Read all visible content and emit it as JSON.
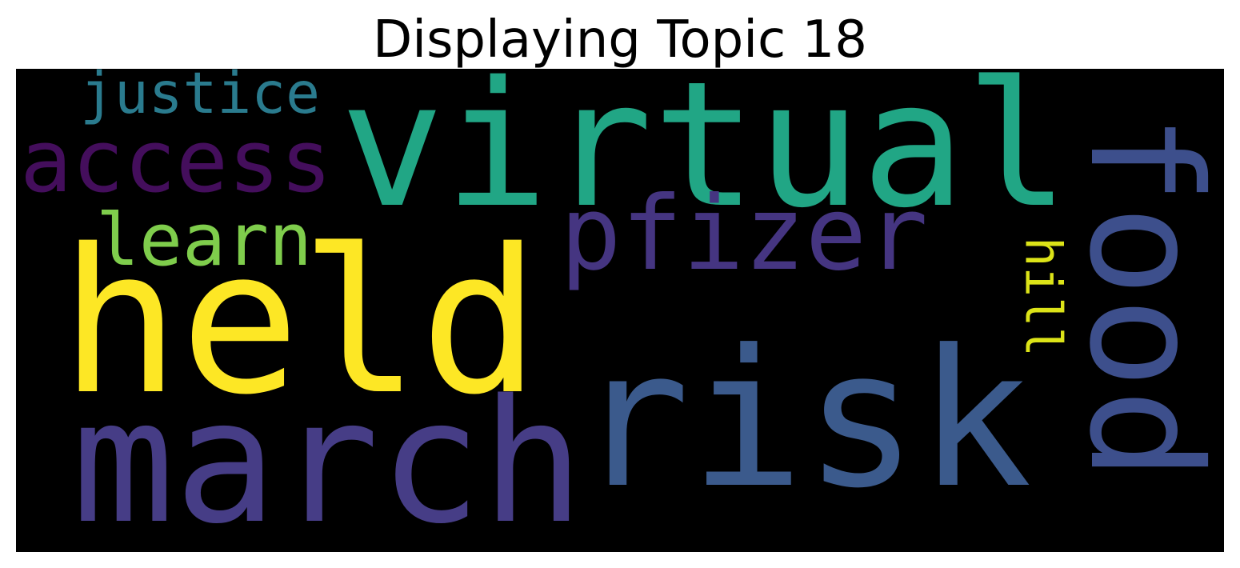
{
  "figure": {
    "title": "Displaying Topic 18",
    "background_color": "#000000",
    "colormap": "viridis"
  },
  "word_cloud": {
    "words": [
      {
        "text": "virtual",
        "color": "#21a685",
        "orientation": "horizontal",
        "relative_size": 1.0
      },
      {
        "text": "held",
        "color": "#fde725",
        "orientation": "horizontal",
        "relative_size": 1.0
      },
      {
        "text": "risk",
        "color": "#3b5a8c",
        "orientation": "horizontal",
        "relative_size": 1.0
      },
      {
        "text": "march",
        "color": "#463d86",
        "orientation": "horizontal",
        "relative_size": 0.85
      },
      {
        "text": "food",
        "color": "#3d4f8c",
        "orientation": "vertical",
        "relative_size": 0.85
      },
      {
        "text": "pfizer",
        "color": "#453581",
        "orientation": "horizontal",
        "relative_size": 0.55
      },
      {
        "text": "access",
        "color": "#440e5c",
        "orientation": "horizontal",
        "relative_size": 0.45
      },
      {
        "text": "learn",
        "color": "#7fcd4c",
        "orientation": "horizontal",
        "relative_size": 0.45
      },
      {
        "text": "justice",
        "color": "#2a7b8e",
        "orientation": "horizontal",
        "relative_size": 0.38
      },
      {
        "text": "hill",
        "color": "#dce318",
        "orientation": "vertical",
        "relative_size": 0.38
      }
    ]
  }
}
